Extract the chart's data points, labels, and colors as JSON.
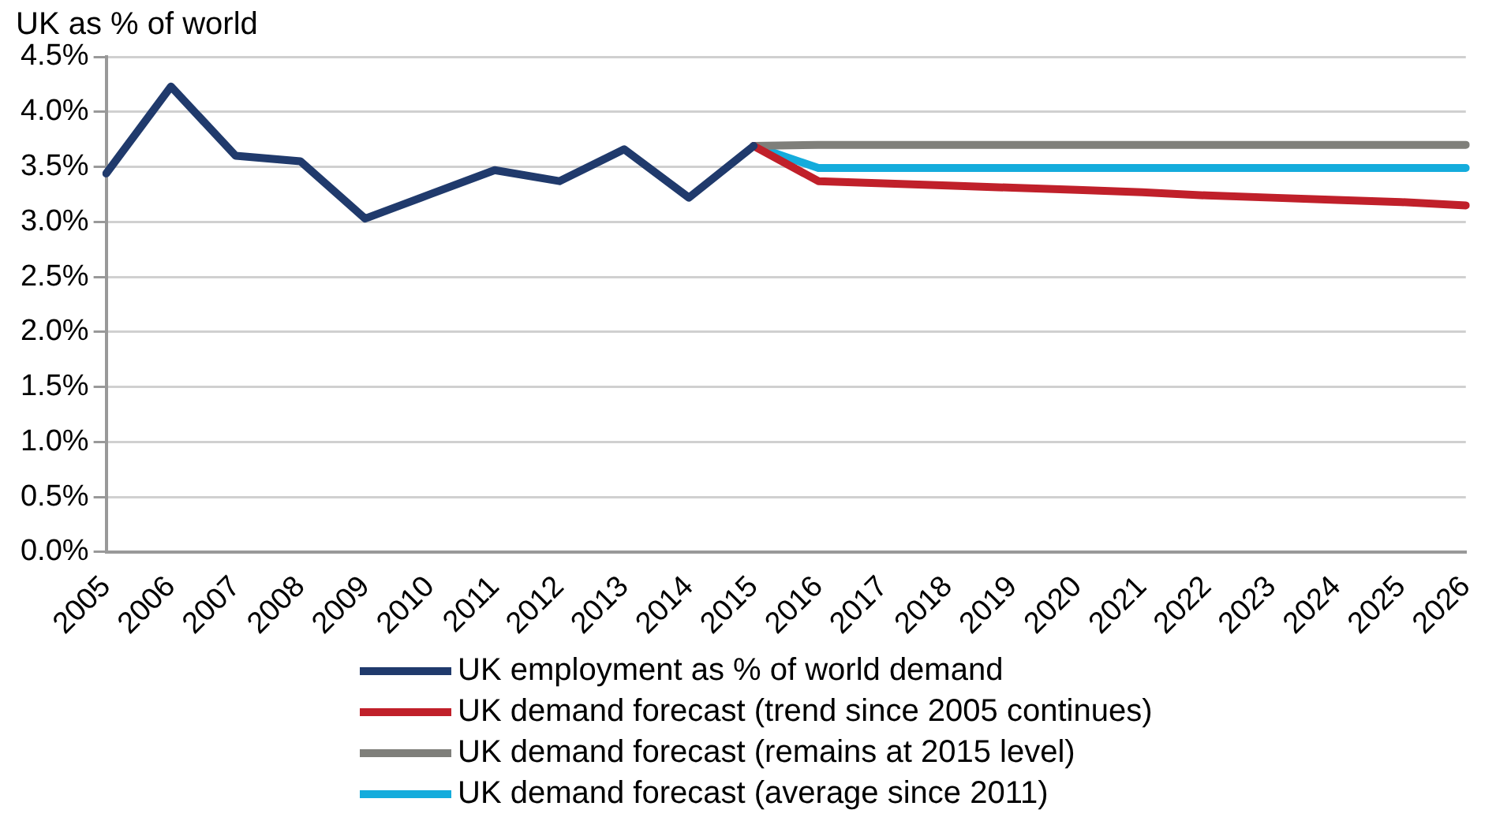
{
  "chart_data": {
    "type": "line",
    "title": "UK as % of world",
    "categories": [
      "2005",
      "2006",
      "2007",
      "2008",
      "2009",
      "2010",
      "2011",
      "2012",
      "2013",
      "2014",
      "2015",
      "2016",
      "2017",
      "2018",
      "2019",
      "2020",
      "2021",
      "2022",
      "2023",
      "2024",
      "2025",
      "2026"
    ],
    "series": [
      {
        "name": "UK employment as % of world demand",
        "color": "#203a6c",
        "values": [
          3.44,
          4.23,
          3.6,
          3.55,
          3.03,
          3.25,
          3.47,
          3.37,
          3.66,
          3.22,
          3.69,
          null,
          null,
          null,
          null,
          null,
          null,
          null,
          null,
          null,
          null,
          null
        ]
      },
      {
        "name": "UK demand forecast (trend since 2005 continues)",
        "color": "#c0202a",
        "values": [
          null,
          null,
          null,
          null,
          null,
          null,
          null,
          null,
          null,
          null,
          3.69,
          3.37,
          3.35,
          3.33,
          3.31,
          3.29,
          3.27,
          3.24,
          3.22,
          3.2,
          3.18,
          3.15
        ]
      },
      {
        "name": "UK demand forecast (remains at 2015 level)",
        "color": "#7f7f7a",
        "values": [
          null,
          null,
          null,
          null,
          null,
          null,
          null,
          null,
          null,
          null,
          3.69,
          3.7,
          3.7,
          3.7,
          3.7,
          3.7,
          3.7,
          3.7,
          3.7,
          3.7,
          3.7,
          3.7
        ]
      },
      {
        "name": "UK demand forecast (average since 2011)",
        "color": "#14acdc",
        "values": [
          null,
          null,
          null,
          null,
          null,
          null,
          null,
          null,
          null,
          null,
          3.69,
          3.49,
          3.49,
          3.49,
          3.49,
          3.49,
          3.49,
          3.49,
          3.49,
          3.49,
          3.49,
          3.49
        ]
      }
    ],
    "ylim": [
      0,
      4.5
    ],
    "yticks": [
      {
        "value": 0,
        "label": "0.0%"
      },
      {
        "value": 0.5,
        "label": "0.5%"
      },
      {
        "value": 1,
        "label": "1.0%"
      },
      {
        "value": 1.5,
        "label": "1.5%"
      },
      {
        "value": 2,
        "label": "2.0%"
      },
      {
        "value": 2.5,
        "label": "2.5%"
      },
      {
        "value": 3,
        "label": "3.0%"
      },
      {
        "value": 3.5,
        "label": "3.5%"
      },
      {
        "value": 4,
        "label": "4.0%"
      },
      {
        "value": 4.5,
        "label": "4.5%"
      }
    ],
    "grid": "y",
    "legend": "bottom",
    "marker": "none",
    "line_style": "solid"
  }
}
